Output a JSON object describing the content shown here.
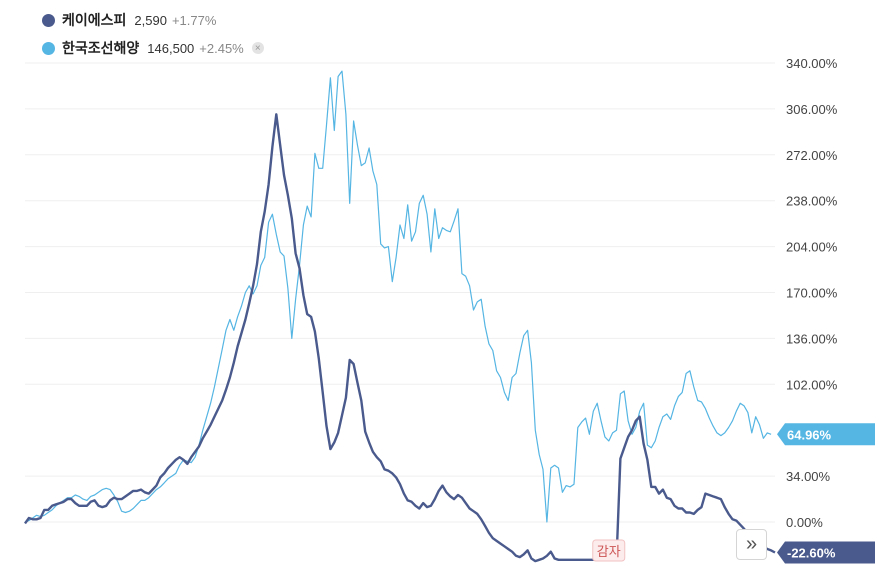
{
  "legend": [
    {
      "name": "케이에스피",
      "price": "2,590",
      "change": "+1.77%",
      "color": "#4a5a8c",
      "closable": false
    },
    {
      "name": "한국조선해양",
      "price": "146,500",
      "change": "+2.45%",
      "color": "#55b5e3",
      "closable": true
    }
  ],
  "close_icon": "×",
  "scroll_icon": "»",
  "chart_data": {
    "type": "line",
    "y_unit": "%",
    "ylim": [
      -22.6,
      340
    ],
    "y_ticks": [
      "340.00%",
      "306.00%",
      "272.00%",
      "238.00%",
      "204.00%",
      "170.00%",
      "136.00%",
      "102.00%",
      "34.00%",
      "0.00%"
    ],
    "y_tick_values": [
      340,
      306,
      272,
      238,
      204,
      170,
      136,
      102,
      34,
      0
    ],
    "grid": true,
    "annotation": {
      "label": "감자",
      "at_index": 151
    },
    "series": [
      {
        "name": "케이에스피",
        "color": "#4a5a8c",
        "last_label": "-22.60%",
        "values": [
          -1,
          3,
          2,
          2,
          3,
          9,
          9,
          12,
          13,
          14,
          15,
          17,
          17,
          14,
          12,
          12,
          12,
          15,
          16,
          12,
          11,
          12,
          16,
          18,
          17,
          17,
          19,
          21,
          23,
          23,
          24,
          22,
          21,
          24,
          27,
          33,
          36,
          40,
          43,
          46,
          48,
          46,
          43,
          48,
          52,
          56,
          62,
          67,
          72,
          78,
          84,
          90,
          98,
          107,
          118,
          130,
          140,
          150,
          162,
          175,
          191,
          215,
          230,
          250,
          278,
          302,
          279,
          257,
          242,
          225,
          199,
          188,
          168,
          154,
          152,
          141,
          121,
          96,
          71,
          54,
          59,
          66,
          79,
          92,
          120,
          117,
          103,
          90,
          67,
          59,
          52,
          48,
          45,
          39,
          38,
          36,
          33,
          28,
          21,
          16,
          15,
          12,
          10,
          14,
          11,
          12,
          17,
          23,
          27,
          22,
          19,
          17,
          20,
          18,
          14,
          10,
          8,
          6,
          2,
          -3,
          -8,
          -12,
          -14,
          -16,
          -18,
          -20,
          -22,
          -25,
          -26,
          -24,
          -21,
          -27,
          -29,
          -28,
          -27,
          -25,
          -22,
          -27,
          -28,
          -28,
          -28,
          -28,
          -28,
          -28,
          -28,
          -28,
          -28,
          -28,
          -28,
          -28,
          -28,
          -28,
          -28,
          -28,
          47,
          55,
          63,
          68,
          75,
          78,
          58,
          46,
          26,
          26,
          21,
          24,
          18,
          17,
          12,
          10,
          10,
          7,
          7,
          6,
          9,
          11,
          21,
          20,
          19,
          18,
          17,
          11,
          6,
          2,
          1,
          -2,
          -5,
          -9,
          -11,
          -14,
          -17,
          -18,
          -20,
          -21,
          -22.6
        ]
      },
      {
        "name": "한국조선해양",
        "color": "#55b5e3",
        "last_label": "64.96%",
        "values": [
          0,
          1,
          3,
          5,
          4,
          5,
          7,
          9,
          12,
          14,
          16,
          18,
          18,
          20,
          19,
          17,
          16,
          19,
          20,
          22,
          24,
          25,
          24,
          20,
          15,
          8,
          7,
          8,
          10,
          13,
          16,
          16,
          18,
          21,
          24,
          26,
          29,
          32,
          34,
          36,
          42,
          46,
          45,
          44,
          48,
          57,
          68,
          78,
          88,
          100,
          114,
          128,
          142,
          150,
          142,
          152,
          160,
          170,
          175,
          169,
          175,
          190,
          196,
          222,
          228,
          213,
          200,
          197,
          173,
          136,
          165,
          190,
          220,
          234,
          226,
          273,
          262,
          262,
          294,
          329,
          290,
          330,
          334,
          302,
          236,
          297,
          279,
          264,
          266,
          277,
          260,
          250,
          206,
          203,
          204,
          178,
          196,
          220,
          210,
          235,
          208,
          215,
          236,
          242,
          228,
          200,
          232,
          210,
          218,
          216,
          215,
          223,
          232,
          184,
          182,
          175,
          157,
          163,
          165,
          145,
          132,
          127,
          112,
          107,
          96,
          90,
          107,
          110,
          125,
          138,
          142,
          118,
          68,
          50,
          39,
          0,
          40,
          42,
          40,
          22,
          27,
          26,
          28,
          70,
          74,
          77,
          65,
          82,
          88,
          75,
          63,
          60,
          66,
          68,
          95,
          97,
          75,
          65,
          70,
          82,
          88,
          57,
          55,
          60,
          70,
          78,
          80,
          76,
          86,
          93,
          96,
          110,
          112,
          100,
          90,
          89,
          84,
          77,
          71,
          66,
          64,
          66,
          70,
          75,
          82,
          88,
          86,
          81,
          66,
          78,
          72,
          62,
          66,
          64.96
        ]
      }
    ]
  }
}
